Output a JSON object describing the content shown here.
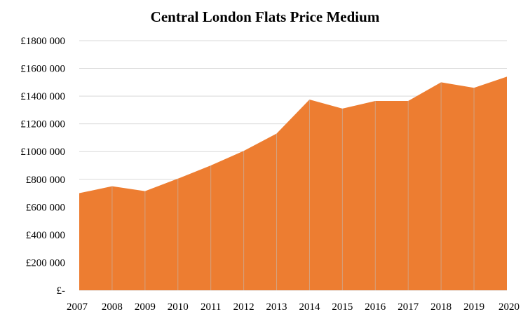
{
  "chart_data": {
    "type": "area",
    "title": "Central London Flats Price Medium",
    "xlabel": "",
    "ylabel": "",
    "categories": [
      "2007",
      "2008",
      "2009",
      "2010",
      "2011",
      "2012",
      "2013",
      "2014",
      "2015",
      "2016",
      "2017",
      "2018",
      "2019",
      "2020"
    ],
    "series": [
      {
        "values": [
          700000,
          750000,
          715000,
          805000,
          900000,
          1005000,
          1130000,
          1375000,
          1310000,
          1365000,
          1365000,
          1500000,
          1460000,
          1540000
        ]
      }
    ],
    "ylim": [
      0,
      1800000
    ],
    "y_ticks": [
      0,
      200000,
      400000,
      600000,
      800000,
      1000000,
      1200000,
      1400000,
      1600000,
      1800000
    ],
    "y_tick_labels": [
      "£-",
      "£200 000",
      "£400 000",
      "£600 000",
      "£800 000",
      "£1000 000",
      "£1200 000",
      "£1400 000",
      "£1600 000",
      "£1800 000"
    ],
    "grid": true,
    "legend": "none",
    "colors": {
      "area": "#ED7D31",
      "grid": "#D9D9D9",
      "divider": "#C0C0C0"
    }
  }
}
